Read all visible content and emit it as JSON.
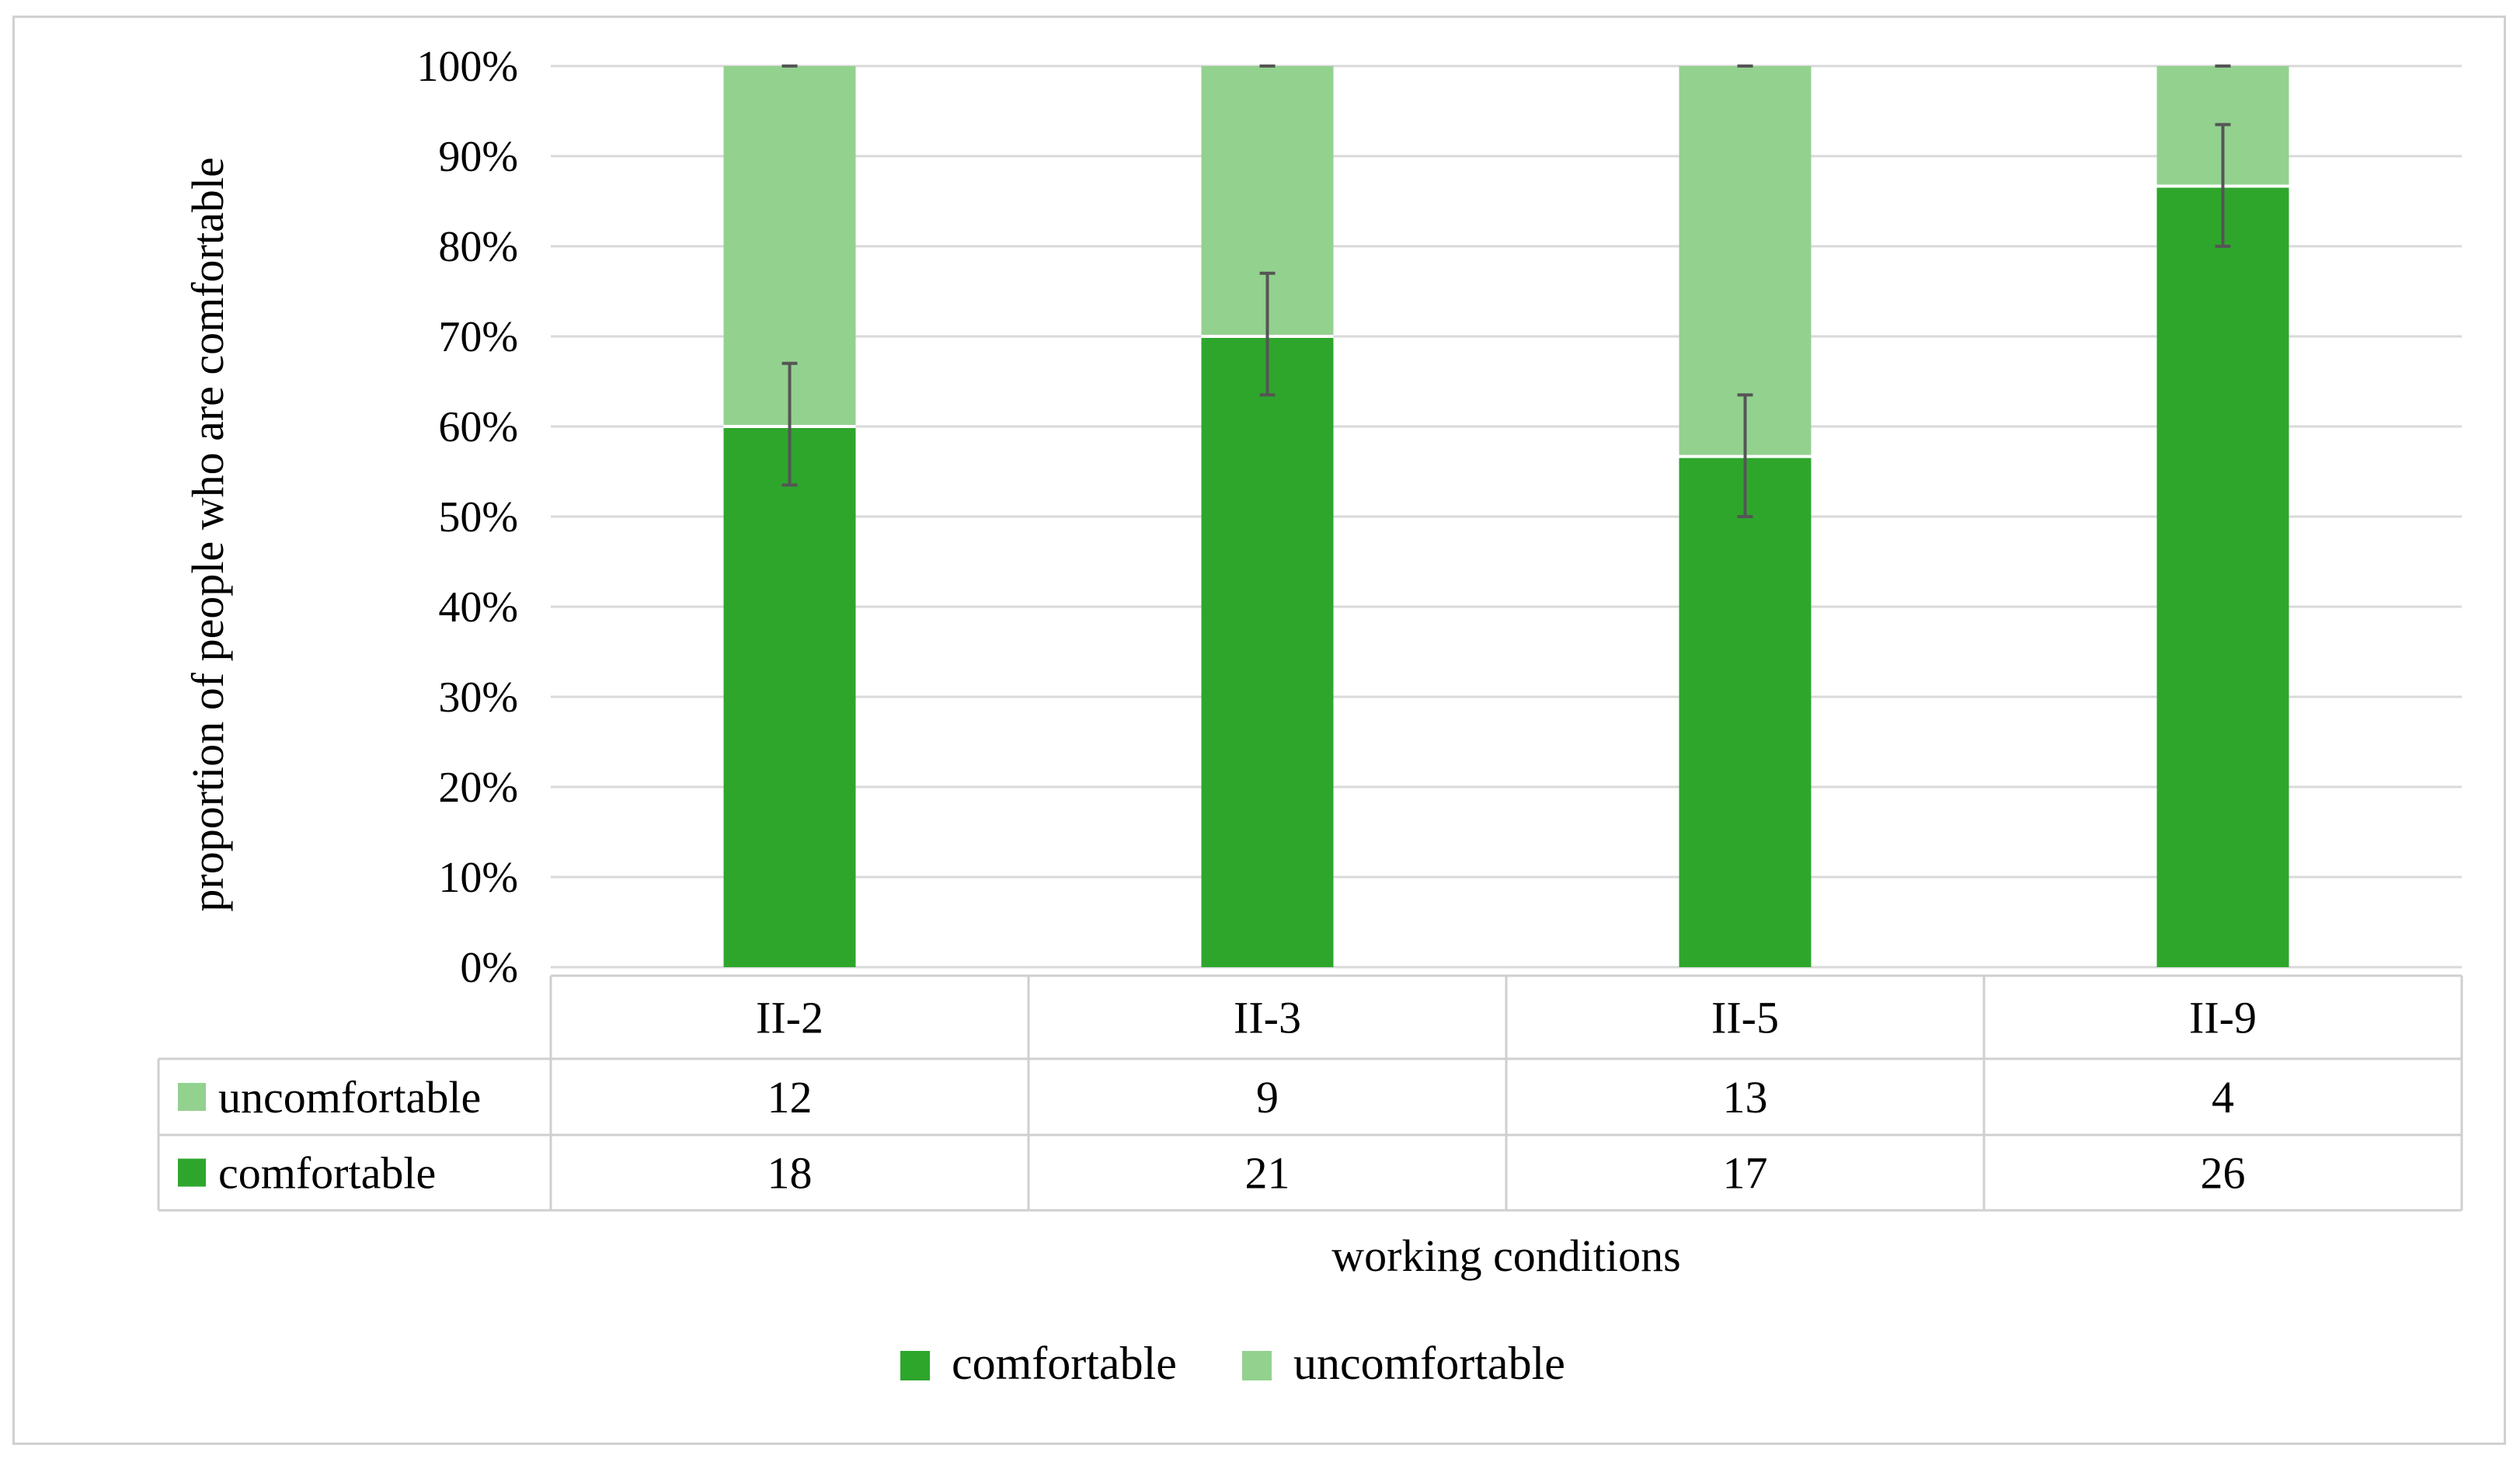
{
  "chart_data": {
    "type": "bar",
    "stacked": true,
    "percent_stacked": true,
    "categories": [
      "II-2",
      "II-3",
      "II-5",
      "II-9"
    ],
    "series": [
      {
        "name": "comfortable",
        "values": [
          18,
          21,
          17,
          26
        ],
        "color": "#2ea62c"
      },
      {
        "name": "uncomfortable",
        "values": [
          12,
          9,
          13,
          4
        ],
        "color": "#93d18f"
      }
    ],
    "error_bars": {
      "series": "comfortable",
      "low_pct": [
        53.5,
        63.5,
        50.0,
        80.0
      ],
      "high_pct": [
        67.0,
        77.0,
        63.5,
        93.5
      ]
    },
    "title": "",
    "xlabel": "working conditions",
    "ylabel": "proportion of people who are  comfortable",
    "ylim": [
      0,
      100
    ],
    "y_ticks": [
      "0%",
      "10%",
      "20%",
      "30%",
      "40%",
      "50%",
      "60%",
      "70%",
      "80%",
      "90%",
      "100%"
    ],
    "grid": true,
    "data_table": true,
    "data_table_rows": [
      "uncomfortable",
      "comfortable"
    ],
    "legend": {
      "position": "bottom",
      "entries": [
        "comfortable",
        "uncomfortable"
      ]
    }
  }
}
